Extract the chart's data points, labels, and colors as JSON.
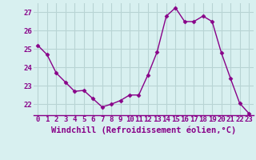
{
  "x": [
    0,
    1,
    2,
    3,
    4,
    5,
    6,
    7,
    8,
    9,
    10,
    11,
    12,
    13,
    14,
    15,
    16,
    17,
    18,
    19,
    20,
    21,
    22,
    23
  ],
  "y": [
    25.2,
    24.7,
    23.7,
    23.2,
    22.7,
    22.75,
    22.3,
    21.85,
    22.0,
    22.2,
    22.5,
    22.5,
    23.6,
    24.85,
    26.8,
    27.25,
    26.5,
    26.5,
    26.8,
    26.5,
    24.8,
    23.4,
    22.05,
    21.5
  ],
  "xlabel": "Windchill (Refroidissement éolien,°C)",
  "xtick_labels": [
    "0",
    "1",
    "2",
    "3",
    "4",
    "5",
    "6",
    "7",
    "8",
    "9",
    "10",
    "11",
    "12",
    "13",
    "14",
    "15",
    "16",
    "17",
    "18",
    "19",
    "20",
    "21",
    "22",
    "23"
  ],
  "ytick_labels": [
    "22",
    "23",
    "24",
    "25",
    "26",
    "27"
  ],
  "ylim": [
    21.4,
    27.5
  ],
  "xlim": [
    -0.5,
    23.5
  ],
  "line_color": "#880088",
  "marker": "D",
  "marker_size": 2.5,
  "bg_color": "#d8f0f0",
  "grid_color": "#b8d4d4",
  "label_color": "#880088",
  "font_size": 6.5,
  "xlabel_fontsize": 7.5
}
